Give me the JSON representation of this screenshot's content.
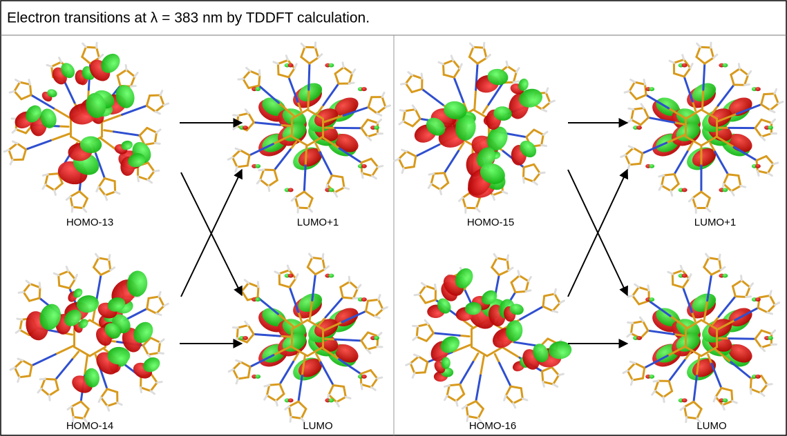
{
  "header": {
    "title": "Electron transitions  at λ = 383 nm by TDDFT calculation."
  },
  "panels": [
    {
      "labels": [
        "HOMO-13",
        "LUMO+1",
        "HOMO-14",
        "LUMO"
      ]
    },
    {
      "labels": [
        "HOMO-15",
        "LUMO+1",
        "HOMO-16",
        "LUMO"
      ]
    }
  ]
}
